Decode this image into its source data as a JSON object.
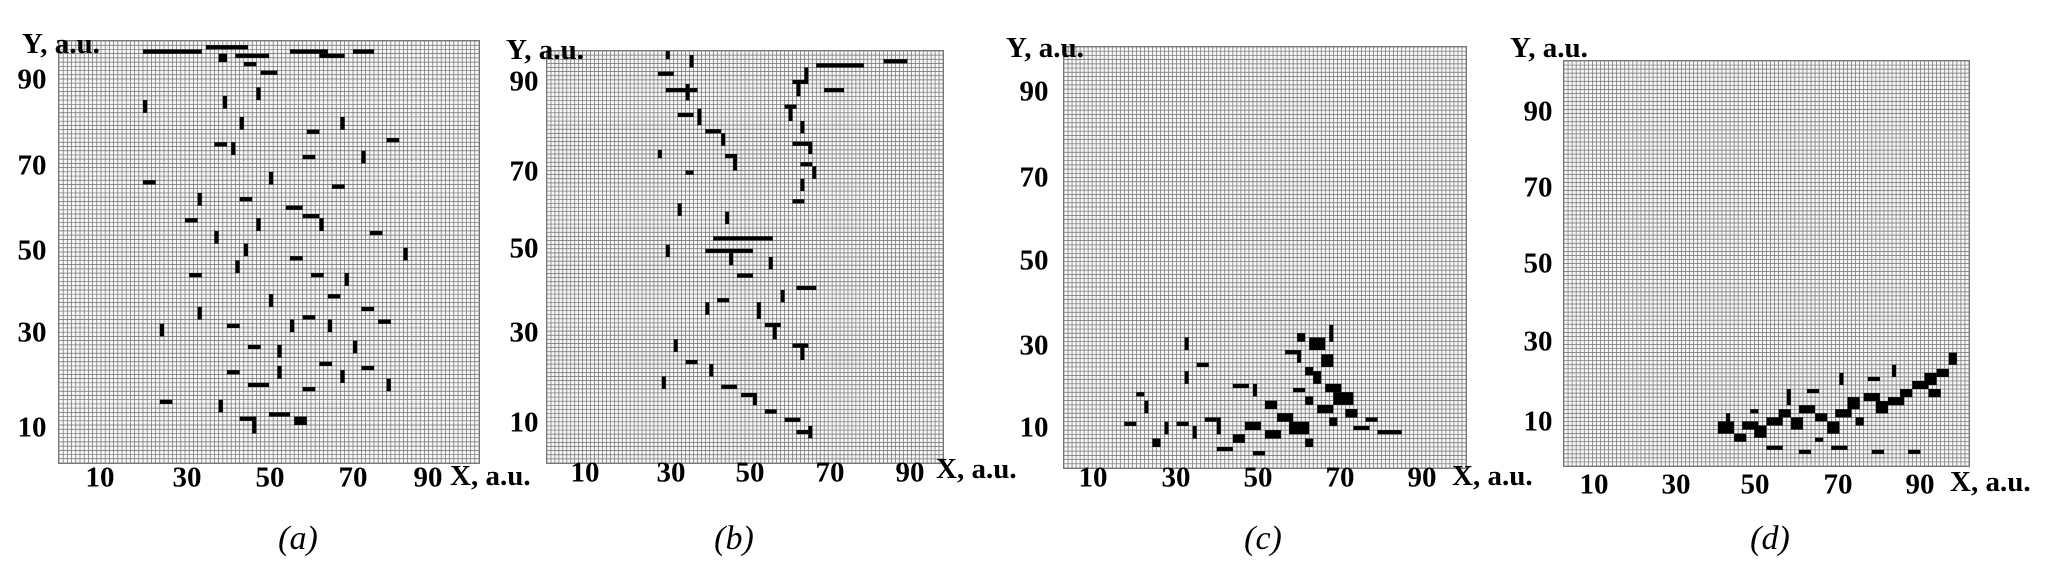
{
  "panels": [
    {
      "id": "a",
      "caption": "(a)",
      "ylabel": "Y, a.u.",
      "xlabel": "X, a.u.",
      "xticks": [
        "10",
        "30",
        "50",
        "70",
        "90"
      ],
      "yticks": [
        "90",
        "70",
        "50",
        "30",
        "10"
      ],
      "lattice_size": [
        100,
        100
      ],
      "broken_bonds": [
        [
          20,
          97,
          14,
          1
        ],
        [
          35,
          98,
          10,
          1
        ],
        [
          42,
          96,
          8,
          1
        ],
        [
          55,
          97,
          9,
          1
        ],
        [
          62,
          96,
          6,
          1
        ],
        [
          70,
          97,
          5,
          1
        ],
        [
          44,
          94,
          3,
          1
        ],
        [
          48,
          92,
          4,
          1
        ],
        [
          38,
          95,
          2,
          2
        ],
        [
          20,
          83,
          1,
          3
        ],
        [
          47,
          86,
          1,
          3
        ],
        [
          39,
          84,
          1,
          3
        ],
        [
          43,
          79,
          1,
          3
        ],
        [
          67,
          79,
          1,
          3
        ],
        [
          59,
          78,
          3,
          1
        ],
        [
          78,
          76,
          3,
          1
        ],
        [
          37,
          75,
          3,
          1
        ],
        [
          41,
          73,
          1,
          3
        ],
        [
          58,
          72,
          3,
          1
        ],
        [
          72,
          71,
          1,
          3
        ],
        [
          20,
          66,
          3,
          1
        ],
        [
          50,
          66,
          1,
          3
        ],
        [
          65,
          65,
          3,
          1
        ],
        [
          33,
          61,
          1,
          3
        ],
        [
          43,
          62,
          3,
          1
        ],
        [
          54,
          60,
          4,
          1
        ],
        [
          30,
          57,
          3,
          1
        ],
        [
          47,
          55,
          1,
          3
        ],
        [
          58,
          58,
          4,
          1
        ],
        [
          62,
          55,
          1,
          3
        ],
        [
          74,
          54,
          3,
          1
        ],
        [
          37,
          52,
          1,
          3
        ],
        [
          44,
          49,
          1,
          3
        ],
        [
          55,
          48,
          3,
          1
        ],
        [
          82,
          48,
          1,
          3
        ],
        [
          31,
          44,
          3,
          1
        ],
        [
          42,
          45,
          1,
          3
        ],
        [
          60,
          44,
          3,
          1
        ],
        [
          68,
          42,
          1,
          3
        ],
        [
          64,
          39,
          3,
          1
        ],
        [
          50,
          37,
          1,
          3
        ],
        [
          72,
          36,
          3,
          1
        ],
        [
          33,
          34,
          1,
          3
        ],
        [
          40,
          32,
          3,
          1
        ],
        [
          55,
          31,
          1,
          3
        ],
        [
          58,
          34,
          3,
          1
        ],
        [
          64,
          31,
          1,
          3
        ],
        [
          76,
          33,
          3,
          1
        ],
        [
          24,
          30,
          1,
          3
        ],
        [
          45,
          27,
          3,
          1
        ],
        [
          52,
          25,
          1,
          3
        ],
        [
          62,
          23,
          3,
          1
        ],
        [
          70,
          26,
          1,
          3
        ],
        [
          40,
          21,
          3,
          1
        ],
        [
          45,
          18,
          5,
          1
        ],
        [
          52,
          20,
          1,
          3
        ],
        [
          58,
          17,
          3,
          1
        ],
        [
          67,
          19,
          1,
          3
        ],
        [
          72,
          22,
          3,
          1
        ],
        [
          24,
          14,
          3,
          1
        ],
        [
          38,
          12,
          1,
          3
        ],
        [
          43,
          10,
          4,
          1
        ],
        [
          50,
          11,
          5,
          1
        ],
        [
          56,
          9,
          3,
          2
        ],
        [
          46,
          7,
          1,
          3
        ],
        [
          78,
          17,
          1,
          3
        ]
      ]
    },
    {
      "id": "b",
      "caption": "(b)",
      "ylabel": "Y, a.u.",
      "xlabel": "X, a.u.",
      "xticks": [
        "10",
        "30",
        "50",
        "70",
        "90"
      ],
      "yticks": [
        "90",
        "70",
        "50",
        "30",
        "10"
      ],
      "lattice_size": [
        100,
        100
      ],
      "broken_bonds": [
        [
          30,
          98,
          1,
          3
        ],
        [
          28,
          94,
          4,
          1
        ],
        [
          36,
          96,
          1,
          3
        ],
        [
          30,
          90,
          8,
          1
        ],
        [
          35,
          88,
          1,
          4
        ],
        [
          33,
          84,
          4,
          1
        ],
        [
          38,
          82,
          1,
          4
        ],
        [
          40,
          80,
          4,
          1
        ],
        [
          44,
          77,
          1,
          3
        ],
        [
          45,
          74,
          3,
          1
        ],
        [
          47,
          71,
          1,
          3
        ],
        [
          68,
          96,
          12,
          1
        ],
        [
          65,
          93,
          1,
          3
        ],
        [
          62,
          92,
          4,
          1
        ],
        [
          63,
          89,
          1,
          3
        ],
        [
          60,
          86,
          3,
          1
        ],
        [
          61,
          83,
          1,
          3
        ],
        [
          64,
          80,
          1,
          3
        ],
        [
          62,
          77,
          4,
          1
        ],
        [
          66,
          75,
          1,
          3
        ],
        [
          64,
          72,
          3,
          1
        ],
        [
          67,
          69,
          1,
          3
        ],
        [
          64,
          66,
          1,
          3
        ],
        [
          62,
          63,
          3,
          1
        ],
        [
          85,
          97,
          6,
          1
        ],
        [
          70,
          90,
          5,
          1
        ],
        [
          28,
          74,
          1,
          2
        ],
        [
          35,
          70,
          2,
          1
        ],
        [
          33,
          60,
          1,
          3
        ],
        [
          45,
          58,
          1,
          3
        ],
        [
          42,
          54,
          15,
          1
        ],
        [
          40,
          51,
          12,
          1
        ],
        [
          46,
          48,
          1,
          3
        ],
        [
          48,
          45,
          4,
          1
        ],
        [
          56,
          47,
          1,
          3
        ],
        [
          30,
          50,
          1,
          3
        ],
        [
          63,
          42,
          5,
          1
        ],
        [
          59,
          39,
          1,
          3
        ],
        [
          43,
          39,
          3,
          1
        ],
        [
          40,
          36,
          1,
          3
        ],
        [
          53,
          35,
          1,
          4
        ],
        [
          55,
          33,
          4,
          1
        ],
        [
          57,
          30,
          1,
          3
        ],
        [
          62,
          28,
          4,
          1
        ],
        [
          64,
          25,
          1,
          3
        ],
        [
          32,
          27,
          1,
          3
        ],
        [
          35,
          24,
          3,
          1
        ],
        [
          41,
          21,
          1,
          3
        ],
        [
          44,
          18,
          4,
          1
        ],
        [
          49,
          16,
          3,
          1
        ],
        [
          52,
          14,
          1,
          3
        ],
        [
          55,
          12,
          3,
          1
        ],
        [
          60,
          10,
          4,
          1
        ],
        [
          63,
          7,
          3,
          1
        ],
        [
          66,
          6,
          1,
          3
        ],
        [
          29,
          18,
          1,
          3
        ]
      ]
    },
    {
      "id": "c",
      "caption": "(c)",
      "ylabel": "Y, a.u.",
      "xlabel": "X, a.u.",
      "xticks": [
        "10",
        "30",
        "50",
        "70",
        "90"
      ],
      "yticks": [
        "90",
        "70",
        "50",
        "30",
        "10"
      ],
      "lattice_size": [
        100,
        100
      ],
      "broken_bonds": [
        [
          58,
          30,
          2,
          2
        ],
        [
          61,
          28,
          4,
          3
        ],
        [
          64,
          24,
          3,
          3
        ],
        [
          60,
          22,
          2,
          2
        ],
        [
          66,
          30,
          1,
          4
        ],
        [
          55,
          27,
          3,
          1
        ],
        [
          58,
          25,
          1,
          3
        ],
        [
          62,
          20,
          2,
          3
        ],
        [
          57,
          18,
          3,
          1
        ],
        [
          65,
          18,
          4,
          2
        ],
        [
          67,
          15,
          5,
          3
        ],
        [
          63,
          13,
          4,
          2
        ],
        [
          70,
          12,
          3,
          2
        ],
        [
          66,
          10,
          2,
          2
        ],
        [
          72,
          9,
          4,
          1
        ],
        [
          75,
          11,
          3,
          1
        ],
        [
          78,
          8,
          6,
          1
        ],
        [
          60,
          15,
          2,
          2
        ],
        [
          30,
          28,
          1,
          3
        ],
        [
          33,
          24,
          3,
          1
        ],
        [
          30,
          20,
          1,
          3
        ],
        [
          42,
          19,
          4,
          1
        ],
        [
          47,
          17,
          1,
          3
        ],
        [
          50,
          14,
          3,
          2
        ],
        [
          53,
          11,
          4,
          2
        ],
        [
          56,
          8,
          5,
          3
        ],
        [
          50,
          7,
          4,
          2
        ],
        [
          45,
          9,
          4,
          2
        ],
        [
          42,
          6,
          3,
          2
        ],
        [
          38,
          8,
          1,
          4
        ],
        [
          35,
          11,
          3,
          1
        ],
        [
          32,
          7,
          1,
          3
        ],
        [
          28,
          10,
          3,
          1
        ],
        [
          25,
          8,
          1,
          3
        ],
        [
          22,
          5,
          2,
          2
        ],
        [
          18,
          17,
          2,
          1
        ],
        [
          15,
          10,
          3,
          1
        ],
        [
          20,
          13,
          1,
          3
        ],
        [
          38,
          4,
          4,
          1
        ],
        [
          47,
          3,
          3,
          1
        ],
        [
          60,
          5,
          2,
          2
        ]
      ]
    },
    {
      "id": "d",
      "caption": "(d)",
      "ylabel": "Y, a.u.",
      "xlabel": "X, a.u.",
      "xticks": [
        "10",
        "30",
        "50",
        "70",
        "90"
      ],
      "yticks": [
        "90",
        "70",
        "50",
        "30",
        "10"
      ],
      "lattice_size": [
        100,
        100
      ],
      "broken_bonds": [
        [
          38,
          8,
          4,
          3
        ],
        [
          42,
          6,
          3,
          2
        ],
        [
          44,
          9,
          4,
          2
        ],
        [
          47,
          7,
          3,
          3
        ],
        [
          50,
          10,
          4,
          2
        ],
        [
          53,
          12,
          3,
          2
        ],
        [
          56,
          9,
          3,
          3
        ],
        [
          58,
          13,
          4,
          2
        ],
        [
          62,
          11,
          3,
          2
        ],
        [
          65,
          8,
          3,
          3
        ],
        [
          67,
          12,
          4,
          2
        ],
        [
          70,
          14,
          3,
          3
        ],
        [
          72,
          10,
          2,
          2
        ],
        [
          74,
          16,
          4,
          2
        ],
        [
          77,
          13,
          3,
          3
        ],
        [
          80,
          15,
          4,
          2
        ],
        [
          83,
          17,
          3,
          2
        ],
        [
          86,
          19,
          4,
          2
        ],
        [
          89,
          20,
          3,
          3
        ],
        [
          92,
          22,
          3,
          2
        ],
        [
          95,
          25,
          2,
          3
        ],
        [
          90,
          17,
          3,
          2
        ],
        [
          55,
          15,
          1,
          4
        ],
        [
          60,
          18,
          3,
          1
        ],
        [
          68,
          20,
          1,
          3
        ],
        [
          75,
          21,
          3,
          1
        ],
        [
          81,
          22,
          1,
          3
        ],
        [
          46,
          13,
          2,
          1
        ],
        [
          40,
          11,
          1,
          2
        ],
        [
          50,
          4,
          4,
          1
        ],
        [
          58,
          3,
          3,
          1
        ],
        [
          66,
          4,
          4,
          1
        ],
        [
          76,
          3,
          3,
          1
        ],
        [
          85,
          3,
          3,
          1
        ],
        [
          62,
          6,
          2,
          1
        ]
      ]
    }
  ]
}
